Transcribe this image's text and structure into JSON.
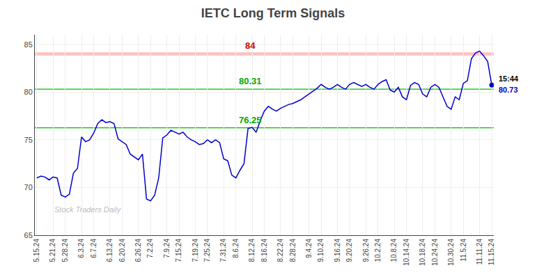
{
  "chart_data": {
    "type": "line",
    "title": "IETC Long Term Signals",
    "color": "#0000cc",
    "grid": true,
    "ylim": [
      65,
      86
    ],
    "yticks": [
      65,
      70,
      75,
      80,
      85
    ],
    "categories": [
      "5.15.24",
      null,
      null,
      null,
      "5.21.24",
      null,
      null,
      "5.28.24",
      null,
      null,
      null,
      "6.3.24",
      null,
      null,
      "6.7.24",
      null,
      null,
      null,
      "6.13.24",
      null,
      null,
      "6.20.24",
      null,
      null,
      null,
      "6.26.24",
      null,
      null,
      "7.2.24",
      null,
      null,
      null,
      "7.9.24",
      null,
      null,
      "7.15.24",
      null,
      null,
      null,
      "7.19.24",
      null,
      null,
      "7.25.24",
      null,
      null,
      null,
      "7.31.24",
      null,
      null,
      "8.6.24",
      null,
      null,
      null,
      "8.12.24",
      null,
      null,
      "8.16.24",
      null,
      null,
      null,
      "8.22.24",
      null,
      null,
      "8.28.24",
      null,
      null,
      null,
      "9.4.24",
      null,
      null,
      "9.10.24",
      null,
      null,
      null,
      "9.16.24",
      null,
      null,
      "9.20.24",
      null,
      null,
      null,
      "9.26.24",
      null,
      null,
      "10.2.24",
      null,
      null,
      null,
      "10.8.24",
      null,
      null,
      "10.14.24",
      null,
      null,
      null,
      "10.18.24",
      null,
      null,
      "10.24.24",
      null,
      null,
      null,
      "10.30.24",
      null,
      null,
      "11.5.24",
      null,
      null,
      null,
      "11.11.24",
      null,
      null,
      "11.15.24"
    ],
    "values": [
      71.0,
      71.2,
      71.1,
      70.8,
      71.1,
      71.0,
      69.2,
      69.0,
      69.3,
      71.5,
      72.0,
      75.3,
      74.8,
      75.0,
      75.7,
      76.7,
      77.1,
      76.8,
      76.9,
      76.7,
      75.1,
      74.8,
      74.5,
      73.5,
      73.2,
      72.9,
      73.5,
      68.8,
      68.6,
      69.2,
      71.0,
      75.2,
      75.5,
      76.0,
      75.8,
      75.6,
      75.8,
      75.3,
      75.0,
      74.8,
      74.5,
      74.6,
      75.0,
      74.7,
      75.0,
      74.7,
      73.0,
      72.8,
      71.3,
      71.0,
      71.8,
      72.5,
      76.2,
      76.3,
      75.8,
      77.0,
      78.0,
      78.5,
      78.2,
      78.0,
      78.3,
      78.5,
      78.7,
      78.8,
      79.0,
      79.2,
      79.5,
      79.8,
      80.1,
      80.4,
      80.8,
      80.5,
      80.3,
      80.5,
      80.8,
      80.5,
      80.3,
      80.8,
      81.0,
      80.8,
      80.6,
      80.8,
      80.5,
      80.3,
      80.8,
      81.1,
      81.3,
      80.2,
      80.0,
      80.5,
      79.5,
      79.2,
      80.7,
      81.0,
      80.8,
      79.8,
      79.5,
      80.5,
      80.8,
      80.5,
      79.5,
      78.5,
      78.2,
      79.5,
      79.2,
      80.9,
      81.2,
      83.5,
      84.1,
      84.3,
      83.8,
      83.2,
      80.73
    ],
    "reference_lines": [
      {
        "value": 84,
        "label": "84",
        "color": "#ffb3b3",
        "label_color": "#cc0000"
      },
      {
        "value": 80.31,
        "label": "80.31",
        "color": "#00bb00",
        "label_color": "#00aa00"
      },
      {
        "value": 76.25,
        "label": "76.25",
        "color": "#00bb00",
        "label_color": "#00aa00"
      }
    ],
    "last_point": {
      "label": "15:44",
      "value": 80.73
    },
    "watermark": {
      "text": "Stock Traders Daily",
      "color": "#bbbbbb"
    }
  }
}
